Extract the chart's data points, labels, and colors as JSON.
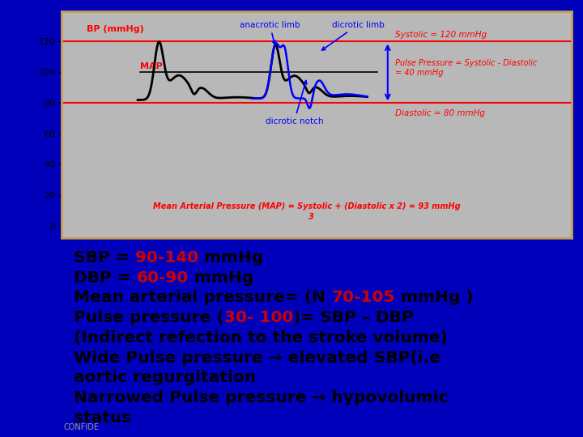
{
  "bg_color": "#0000bb",
  "top_panel_bg": "#b8b8b8",
  "bottom_panel_bg": "#ffffff",
  "border_color": "#c8a050",
  "title_text": "BP (mmHg)",
  "yticks": [
    0,
    20,
    40,
    60,
    80,
    100,
    120
  ],
  "systolic_label": "Systolic = 120 mmHg",
  "diastolic_label": "Diastolic = 80 mmHg",
  "pulse_pressure_label": "Pulse Pressure = Systolic - Diastolic\n= 40 mmHg",
  "map_formula_line1": "Mean Arterial Pressure (MAP) = Systolic + (Diastolic x 2) = 93 mmHg",
  "map_formula_line2": "3",
  "text_lines": [
    [
      {
        "text": "SBP = ",
        "color": "#000000"
      },
      {
        "text": "90-140",
        "color": "#cc0000"
      },
      {
        "text": " mmHg",
        "color": "#000000"
      }
    ],
    [
      {
        "text": "DBP = ",
        "color": "#000000"
      },
      {
        "text": "60-90",
        "color": "#cc0000"
      },
      {
        "text": " mmHg",
        "color": "#000000"
      }
    ],
    [
      {
        "text": "Mean arterial pressure= (N ",
        "color": "#000000"
      },
      {
        "text": "70-105",
        "color": "#cc0000"
      },
      {
        "text": " mmHg )",
        "color": "#000000"
      }
    ],
    [
      {
        "text": "Pulse pressure (",
        "color": "#000000"
      },
      {
        "text": "30- 100",
        "color": "#cc0000"
      },
      {
        "text": ")= SBP – DBP",
        "color": "#000000"
      }
    ],
    [
      {
        "text": "(Indirect refection to the stroke volume)",
        "color": "#000000"
      }
    ],
    [
      {
        "text": "Wide Pulse pressure → elevated SBP(i.e",
        "color": "#000000"
      }
    ],
    [
      {
        "text": "aortic regurgitation",
        "color": "#000000"
      }
    ],
    [
      {
        "text": "Narrowed Pulse pressure → hypovolumic",
        "color": "#000000"
      }
    ],
    [
      {
        "text": "status",
        "color": "#000000"
      }
    ]
  ]
}
